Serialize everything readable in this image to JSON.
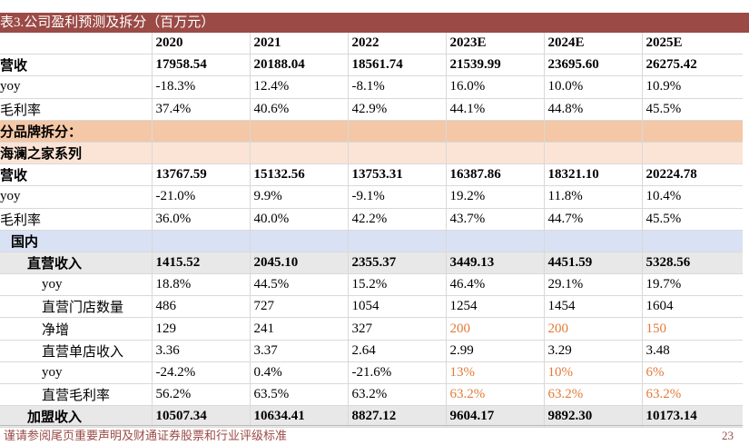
{
  "table": {
    "title": "表3.公司盈利预测及拆分（百万元）",
    "years": [
      "2020",
      "2021",
      "2022",
      "2023E",
      "2024E",
      "2025E"
    ],
    "rows": [
      {
        "label": "营收",
        "style": "bold",
        "values": [
          "17958.54",
          "20188.04",
          "18561.74",
          "21539.99",
          "23695.60",
          "26275.42"
        ]
      },
      {
        "label": "yoy",
        "style": "",
        "values": [
          "-18.3%",
          "12.4%",
          "-8.1%",
          "16.0%",
          "10.0%",
          "10.9%"
        ]
      },
      {
        "label": "毛利率",
        "style": "",
        "values": [
          "37.4%",
          "40.6%",
          "42.9%",
          "44.1%",
          "44.8%",
          "45.5%"
        ]
      },
      {
        "label": "分品牌拆分：",
        "style": "seg1",
        "values": [
          "",
          "",
          "",
          "",
          "",
          ""
        ]
      },
      {
        "label": "海澜之家系列",
        "style": "seg2",
        "values": [
          "",
          "",
          "",
          "",
          "",
          ""
        ]
      },
      {
        "label": "营收",
        "style": "bold",
        "values": [
          "13767.59",
          "15132.56",
          "13753.31",
          "16387.86",
          "18321.10",
          "20224.78"
        ]
      },
      {
        "label": "yoy",
        "style": "",
        "values": [
          "-21.0%",
          "9.9%",
          "-9.1%",
          "19.2%",
          "11.8%",
          "10.4%"
        ]
      },
      {
        "label": "毛利率",
        "style": "",
        "values": [
          "36.0%",
          "40.0%",
          "42.2%",
          "43.7%",
          "44.7%",
          "45.5%"
        ]
      },
      {
        "label": "国内",
        "style": "seg3",
        "indent": 1,
        "values": [
          "",
          "",
          "",
          "",
          "",
          ""
        ]
      },
      {
        "label": "直营收入",
        "style": "grey",
        "indent": 2,
        "values": [
          "1415.52",
          "2045.10",
          "2355.37",
          "3449.13",
          "4451.59",
          "5328.56"
        ]
      },
      {
        "label": "yoy",
        "style": "",
        "indent": 3,
        "values": [
          "18.8%",
          "44.5%",
          "15.2%",
          "46.4%",
          "29.1%",
          "19.7%"
        ]
      },
      {
        "label": "直营门店数量",
        "style": "",
        "indent": 3,
        "values": [
          "486",
          "727",
          "1054",
          "1254",
          "1454",
          "1604"
        ]
      },
      {
        "label": "净增",
        "style": "",
        "indent": 3,
        "orange_from": 3,
        "values": [
          "129",
          "241",
          "327",
          "200",
          "200",
          "150"
        ]
      },
      {
        "label": "直营单店收入",
        "style": "",
        "indent": 3,
        "values": [
          "3.36",
          "3.37",
          "2.64",
          "2.99",
          "3.29",
          "3.48"
        ]
      },
      {
        "label": "yoy",
        "style": "",
        "indent": 3,
        "orange_from": 3,
        "values": [
          "-24.2%",
          "0.4%",
          "-21.6%",
          "13%",
          "10%",
          "6%"
        ]
      },
      {
        "label": "直营毛利率",
        "style": "",
        "indent": 3,
        "orange_from": 3,
        "values": [
          "56.2%",
          "63.5%",
          "63.2%",
          "63.2%",
          "63.2%",
          "63.2%"
        ]
      },
      {
        "label": "加盟收入",
        "style": "grey",
        "indent": 2,
        "values": [
          "10507.34",
          "10634.41",
          "8827.12",
          "9604.17",
          "9892.30",
          "10173.14"
        ]
      }
    ]
  },
  "footer": {
    "disclaimer": "谨请参阅尾页重要声明及财通证券股票和行业评级标准",
    "page_number": "23"
  },
  "colors": {
    "title_bar": "#9b4a45",
    "segment": "#f4c7a6",
    "sub_segment": "#fbe4d5",
    "region": "#d9e1f4",
    "forecast_assumption": "#e07b39"
  }
}
